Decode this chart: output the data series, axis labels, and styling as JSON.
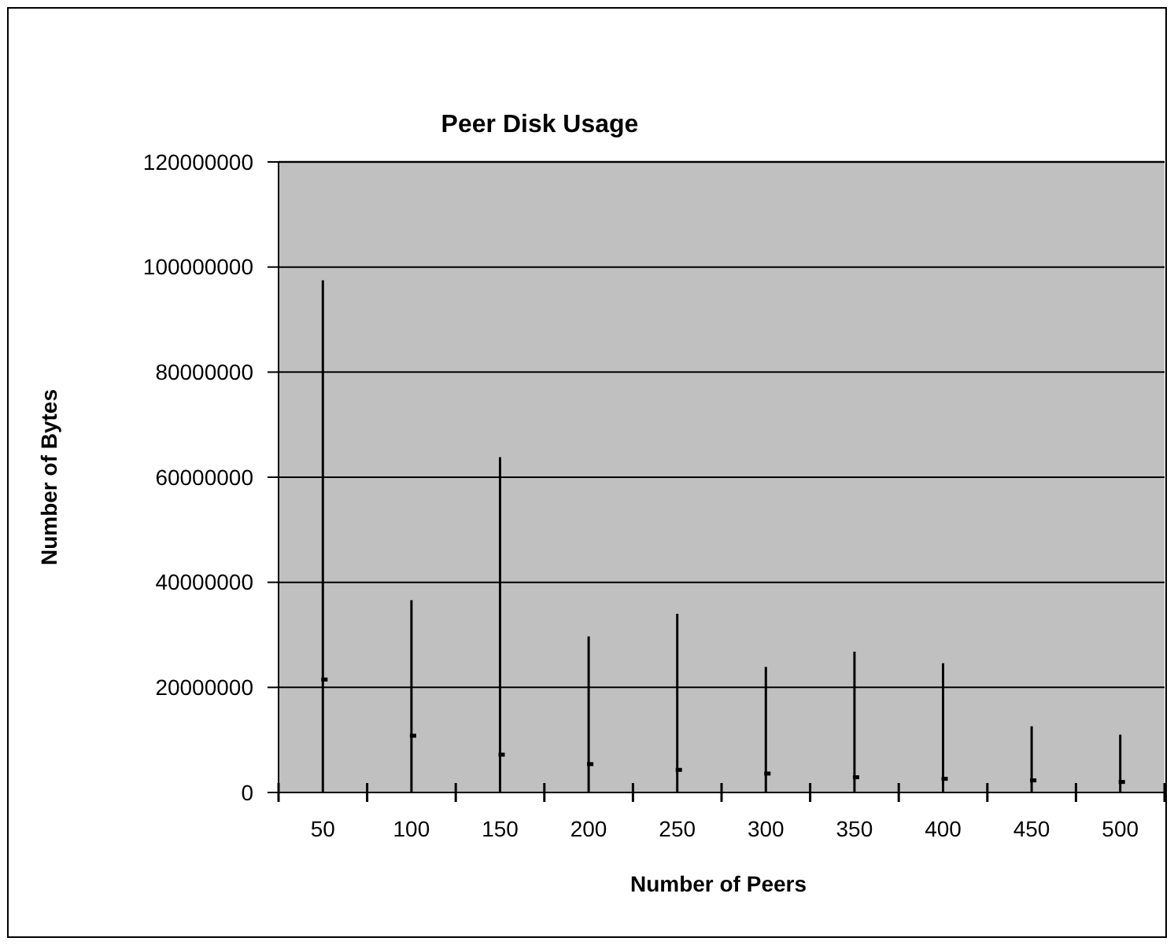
{
  "chart_data": {
    "type": "scatter",
    "title": "Peer Disk Usage",
    "xlabel": "Number of Peers",
    "ylabel": "Number of Bytes",
    "categories": [
      "50",
      "100",
      "150",
      "200",
      "250",
      "300",
      "350",
      "400",
      "450",
      "500"
    ],
    "values": [
      21500000,
      10800000,
      7200000,
      5400000,
      4300000,
      3600000,
      2900000,
      2600000,
      2300000,
      2000000
    ],
    "errors": [
      [
        0,
        97500000
      ],
      [
        0,
        36600000
      ],
      [
        0,
        63800000
      ],
      [
        0,
        29700000
      ],
      [
        0,
        34000000
      ],
      [
        0,
        23900000
      ],
      [
        0,
        26800000
      ],
      [
        0,
        24600000
      ],
      [
        0,
        12600000
      ],
      [
        0,
        11000000
      ]
    ],
    "color": "#000000",
    "marker": "square",
    "ylim": [
      0,
      120000000
    ],
    "yticks": [
      0,
      20000000,
      40000000,
      60000000,
      80000000,
      100000000,
      120000000
    ],
    "grid": "y"
  }
}
